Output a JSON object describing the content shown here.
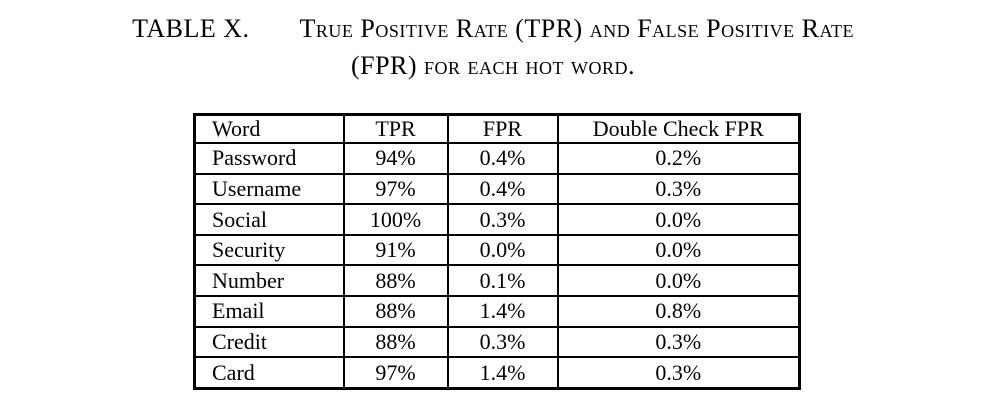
{
  "caption": {
    "label": "TABLE X.",
    "title_line1": "True Positive Rate (TPR) and False Positive Rate",
    "title_line2": "(FPR) for each hot word."
  },
  "table": {
    "columns": [
      "Word",
      "TPR",
      "FPR",
      "Double Check FPR"
    ],
    "rows": [
      [
        "Password",
        "94%",
        "0.4%",
        "0.2%"
      ],
      [
        "Username",
        "97%",
        "0.4%",
        "0.3%"
      ],
      [
        "Social",
        "100%",
        "0.3%",
        "0.0%"
      ],
      [
        "Security",
        "91%",
        "0.0%",
        "0.0%"
      ],
      [
        "Number",
        "88%",
        "0.1%",
        "0.0%"
      ],
      [
        "Email",
        "88%",
        "1.4%",
        "0.8%"
      ],
      [
        "Credit",
        "88%",
        "0.3%",
        "0.3%"
      ],
      [
        "Card",
        "97%",
        "1.4%",
        "0.3%"
      ]
    ]
  },
  "colors": {
    "text": "#000000",
    "border": "#000000",
    "background": "#ffffff"
  }
}
